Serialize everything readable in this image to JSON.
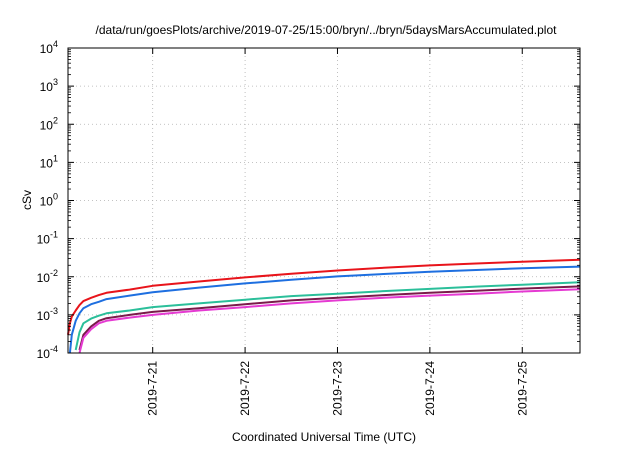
{
  "chart_data": {
    "type": "line",
    "title": "/data/run/goesPlots/archive/2019-07-25/15:00/bryn/../bryn/5daysMarsAccumulated.plot",
    "xlabel": "Coordinated Universal Time (UTC)",
    "ylabel": "cSv",
    "y_scale": "log",
    "ylim": [
      0.0001,
      10000
    ],
    "xlim": [
      "2019-07-20T02:00",
      "2019-07-25T15:00"
    ],
    "grid": true,
    "y_ticks": [
      {
        "value": 0.0001,
        "base": "10",
        "exp": "-4"
      },
      {
        "value": 0.001,
        "base": "10",
        "exp": "-3"
      },
      {
        "value": 0.01,
        "base": "10",
        "exp": "-2"
      },
      {
        "value": 0.1,
        "base": "10",
        "exp": "-1"
      },
      {
        "value": 1,
        "base": "10",
        "exp": "0"
      },
      {
        "value": 10,
        "base": "10",
        "exp": "1"
      },
      {
        "value": 100,
        "base": "10",
        "exp": "2"
      },
      {
        "value": 1000,
        "base": "10",
        "exp": "3"
      },
      {
        "value": 10000,
        "base": "10",
        "exp": "4"
      }
    ],
    "x_ticks": [
      "2019-7-21",
      "2019-7-22",
      "2019-7-23",
      "2019-7-24",
      "2019-7-25"
    ],
    "x_tick_values": [
      "2019-07-21T00:00",
      "2019-07-22T00:00",
      "2019-07-23T00:00",
      "2019-07-24T00:00",
      "2019-07-25T00:00"
    ],
    "series": [
      {
        "color": "#e8141b",
        "x": [
          "2019-07-20T02:00",
          "2019-07-20T02:30",
          "2019-07-20T03:00",
          "2019-07-20T04:00",
          "2019-07-20T05:00",
          "2019-07-20T06:00",
          "2019-07-20T08:00",
          "2019-07-20T10:00",
          "2019-07-20T12:00",
          "2019-07-20T18:00",
          "2019-07-21T00:00",
          "2019-07-21T12:00",
          "2019-07-22T00:00",
          "2019-07-22T12:00",
          "2019-07-23T00:00",
          "2019-07-23T12:00",
          "2019-07-24T00:00",
          "2019-07-24T12:00",
          "2019-07-25T00:00",
          "2019-07-25T15:00"
        ],
        "values": [
          0.0003,
          0.0006,
          0.0009,
          0.0013,
          0.0018,
          0.0023,
          0.0028,
          0.0033,
          0.0038,
          0.0046,
          0.0058,
          0.0075,
          0.0096,
          0.012,
          0.0146,
          0.0172,
          0.0198,
          0.0222,
          0.0248,
          0.028
        ]
      },
      {
        "color": "#1e6fe0",
        "x": [
          "2019-07-20T02:30",
          "2019-07-20T03:00",
          "2019-07-20T04:00",
          "2019-07-20T05:00",
          "2019-07-20T06:00",
          "2019-07-20T08:00",
          "2019-07-20T10:00",
          "2019-07-20T12:00",
          "2019-07-20T18:00",
          "2019-07-21T00:00",
          "2019-07-21T12:00",
          "2019-07-22T00:00",
          "2019-07-22T12:00",
          "2019-07-23T00:00",
          "2019-07-23T12:00",
          "2019-07-24T00:00",
          "2019-07-24T12:00",
          "2019-07-25T00:00",
          "2019-07-25T15:00"
        ],
        "values": [
          0.0001,
          0.0003,
          0.0007,
          0.0011,
          0.0015,
          0.0019,
          0.0022,
          0.0026,
          0.0032,
          0.0039,
          0.0052,
          0.0067,
          0.0083,
          0.0102,
          0.0118,
          0.0135,
          0.015,
          0.0168,
          0.0185
        ]
      },
      {
        "color": "#2bbf9a",
        "x": [
          "2019-07-20T04:00",
          "2019-07-20T05:00",
          "2019-07-20T06:00",
          "2019-07-20T08:00",
          "2019-07-20T10:00",
          "2019-07-20T12:00",
          "2019-07-20T18:00",
          "2019-07-21T00:00",
          "2019-07-21T12:00",
          "2019-07-22T00:00",
          "2019-07-22T12:00",
          "2019-07-23T00:00",
          "2019-07-23T12:00",
          "2019-07-24T00:00",
          "2019-07-24T12:00",
          "2019-07-25T00:00",
          "2019-07-25T15:00"
        ],
        "values": [
          0.00012,
          0.00035,
          0.0006,
          0.0008,
          0.00095,
          0.0011,
          0.0013,
          0.0016,
          0.002,
          0.0025,
          0.0031,
          0.0036,
          0.0042,
          0.0048,
          0.0055,
          0.0062,
          0.0072
        ]
      },
      {
        "color": "#7a1a4a",
        "x": [
          "2019-07-20T05:00",
          "2019-07-20T06:00",
          "2019-07-20T08:00",
          "2019-07-20T10:00",
          "2019-07-20T12:00",
          "2019-07-20T18:00",
          "2019-07-21T00:00",
          "2019-07-21T12:00",
          "2019-07-22T00:00",
          "2019-07-22T12:00",
          "2019-07-23T00:00",
          "2019-07-23T12:00",
          "2019-07-24T00:00",
          "2019-07-24T12:00",
          "2019-07-25T00:00",
          "2019-07-25T15:00"
        ],
        "values": [
          0.00012,
          0.0003,
          0.0005,
          0.0007,
          0.00082,
          0.001,
          0.0012,
          0.0015,
          0.0019,
          0.0024,
          0.0028,
          0.0033,
          0.0038,
          0.0043,
          0.0049,
          0.0056
        ]
      },
      {
        "color": "#e53ad2",
        "x": [
          "2019-07-20T05:00",
          "2019-07-20T06:00",
          "2019-07-20T08:00",
          "2019-07-20T10:00",
          "2019-07-20T12:00",
          "2019-07-20T18:00",
          "2019-07-21T00:00",
          "2019-07-21T12:00",
          "2019-07-22T00:00",
          "2019-07-22T12:00",
          "2019-07-23T00:00",
          "2019-07-23T12:00",
          "2019-07-24T00:00",
          "2019-07-24T12:00",
          "2019-07-25T00:00",
          "2019-07-25T15:00"
        ],
        "values": [
          0.0001,
          0.00025,
          0.00042,
          0.0006,
          0.0007,
          0.00085,
          0.001,
          0.0013,
          0.0016,
          0.002,
          0.0024,
          0.0028,
          0.0032,
          0.0036,
          0.0041,
          0.0047
        ]
      }
    ]
  }
}
